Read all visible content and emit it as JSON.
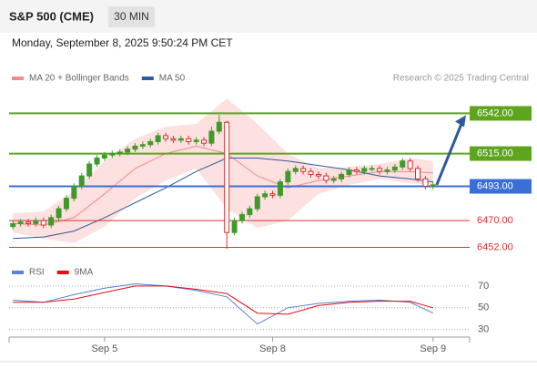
{
  "chart_data": {
    "type": "candlestick",
    "title": "S&P 500 (CME)",
    "interval": "30 MIN",
    "subtitle": "Monday, September 8, 2025 9:50:24 PM CET",
    "credit": "Research © 2025 Trading Central",
    "up_color": "#3f9a2a",
    "down_color": "#d83030",
    "categories": [
      null,
      null,
      null,
      null,
      null,
      null,
      null,
      null,
      null,
      null,
      null,
      null,
      "Sep 5",
      null,
      null,
      null,
      null,
      null,
      null,
      null,
      null,
      null,
      null,
      null,
      null,
      null,
      null,
      null,
      null,
      null,
      null,
      null,
      null,
      null,
      "Sep 8",
      null,
      null,
      null,
      null,
      null,
      null,
      null,
      null,
      null,
      null,
      null,
      null,
      null,
      null,
      null,
      null,
      null,
      null,
      null,
      null,
      "Sep 9"
    ],
    "open": [
      6466,
      6468,
      6469,
      6468,
      6470,
      6467,
      6472,
      6478,
      6485,
      6493,
      6500,
      6508,
      6512,
      6514,
      6515,
      6516,
      6518,
      6520,
      6521,
      6523,
      6527,
      6525,
      6524,
      6525,
      6523,
      6524,
      6522,
      6530,
      6536,
      6462,
      6470,
      6474,
      6478,
      6486,
      6488,
      6487,
      6496,
      6503,
      6505,
      6503,
      6501,
      6500,
      6497,
      6498,
      6501,
      6504,
      6503,
      6505,
      6505,
      6503,
      6504,
      6506,
      6510,
      6505,
      6498,
      6493
    ],
    "high": [
      6470,
      6471,
      6471,
      6472,
      6472,
      6474,
      6480,
      6487,
      6495,
      6502,
      6510,
      6514,
      6516,
      6517,
      6518,
      6520,
      6522,
      6523,
      6525,
      6529,
      6529,
      6527,
      6527,
      6527,
      6526,
      6526,
      6533,
      6541,
      6537,
      6472,
      6476,
      6480,
      6488,
      6490,
      6490,
      6498,
      6505,
      6507,
      6507,
      6505,
      6503,
      6502,
      6500,
      6503,
      6506,
      6506,
      6507,
      6507,
      6507,
      6506,
      6508,
      6512,
      6512,
      6507,
      6500,
      6496
    ],
    "low": [
      6464,
      6466,
      6466,
      6466,
      6465,
      6465,
      6470,
      6476,
      6483,
      6491,
      6498,
      6506,
      6510,
      6512,
      6513,
      6514,
      6516,
      6518,
      6519,
      6521,
      6523,
      6522,
      6522,
      6521,
      6521,
      6520,
      6520,
      6528,
      6451,
      6460,
      6468,
      6472,
      6476,
      6484,
      6485,
      6485,
      6494,
      6501,
      6501,
      6499,
      6498,
      6495,
      6495,
      6496,
      6499,
      6501,
      6501,
      6503,
      6501,
      6501,
      6502,
      6504,
      6503,
      6496,
      6491,
      6491
    ],
    "close": [
      6468,
      6469,
      6468,
      6470,
      6467,
      6472,
      6478,
      6485,
      6493,
      6500,
      6508,
      6512,
      6514,
      6515,
      6516,
      6518,
      6520,
      6521,
      6523,
      6527,
      6525,
      6524,
      6525,
      6523,
      6524,
      6522,
      6530,
      6536,
      6462,
      6470,
      6474,
      6478,
      6486,
      6488,
      6487,
      6496,
      6503,
      6505,
      6503,
      6501,
      6500,
      6497,
      6498,
      6501,
      6504,
      6503,
      6505,
      6505,
      6503,
      6504,
      6506,
      6510,
      6505,
      6498,
      6493,
      6494
    ],
    "ylim": [
      6445,
      6560
    ],
    "levels": [
      {
        "value": 6542,
        "label": "6542.00",
        "color": "#5ea51d",
        "boxed": true
      },
      {
        "value": 6515,
        "label": "6515.00",
        "color": "#5ea51d",
        "boxed": true
      },
      {
        "value": 6493,
        "label": "6493.00",
        "color": "#3a6fd8",
        "boxed": true
      },
      {
        "value": 6470,
        "label": "6470.00",
        "color": "#e03030",
        "boxed": false
      },
      {
        "value": 6452,
        "label": "6452.00",
        "color": "#e03030",
        "boxed": false
      }
    ],
    "indicators": {
      "x": [
        0,
        4,
        8,
        12,
        16,
        20,
        24,
        28,
        32,
        36,
        40,
        44,
        48,
        52,
        55
      ],
      "series": [
        {
          "name": "MA 20 + Bollinger Bands",
          "color": "#f08a8a",
          "values": [
            6468,
            6467,
            6472,
            6488,
            6505,
            6515,
            6520,
            6515,
            6500,
            6492,
            6497,
            6500,
            6503,
            6503,
            6502
          ],
          "upper": [
            6475,
            6476,
            6490,
            6510,
            6525,
            6533,
            6535,
            6552,
            6535,
            6515,
            6505,
            6506,
            6508,
            6512,
            6510
          ],
          "lower": [
            6462,
            6458,
            6455,
            6466,
            6485,
            6497,
            6505,
            6478,
            6465,
            6470,
            6488,
            6494,
            6498,
            6495,
            6494
          ]
        },
        {
          "name": "MA 50",
          "color": "#2c5a9a",
          "values": [
            6458,
            6459,
            6463,
            6472,
            6482,
            6492,
            6503,
            6512,
            6512,
            6510,
            6507,
            6504,
            6500,
            6498,
            6496
          ]
        }
      ]
    },
    "rsi": {
      "ylim": [
        23,
        90
      ],
      "yticks": [
        30,
        50,
        70
      ],
      "series": [
        {
          "name": "RSI",
          "color": "#5b80d8",
          "values": [
            57,
            55,
            62,
            68,
            72,
            70,
            66,
            60,
            35,
            50,
            54,
            56,
            57,
            55,
            45
          ]
        },
        {
          "name": "9MA",
          "color": "#e01010",
          "values": [
            55,
            55,
            58,
            64,
            70,
            70,
            67,
            63,
            45,
            44,
            52,
            55,
            56,
            56,
            50
          ]
        }
      ]
    }
  }
}
